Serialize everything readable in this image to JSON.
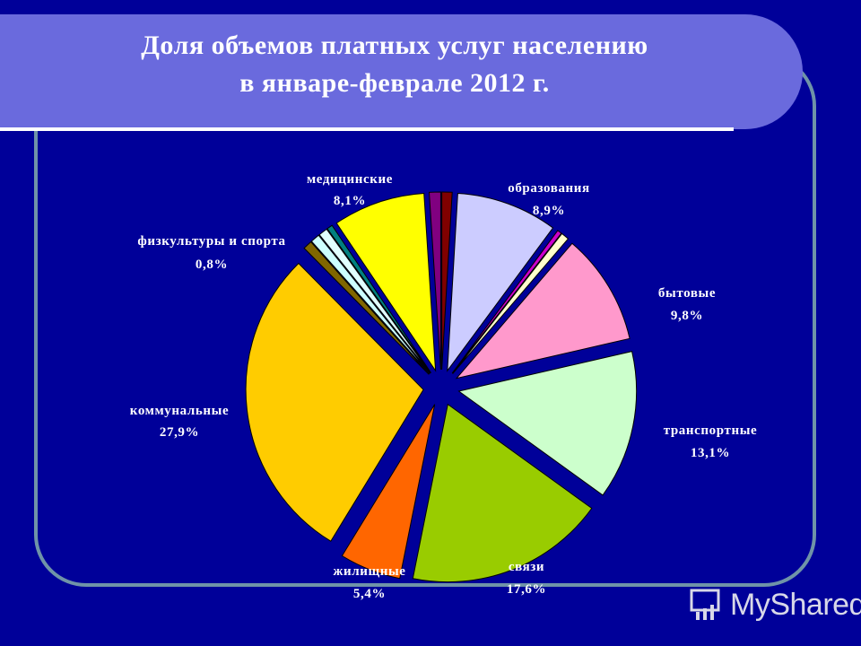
{
  "title": {
    "line1": "Доля объемов платных услуг населению",
    "line2": "в январе-феврале 2012 г."
  },
  "watermark": {
    "text": "MyShared",
    "icon": "presentation-icon"
  },
  "chart_data": {
    "type": "pie",
    "exploded": true,
    "slices": [
      {
        "label": "",
        "value": 0.9,
        "pct": "",
        "color": "#800000"
      },
      {
        "label": "образования",
        "value": 8.9,
        "pct": "8,9%",
        "color": "#ccccff"
      },
      {
        "label": "",
        "value": 0.4,
        "pct": "",
        "color": "#cc00cc"
      },
      {
        "label": "",
        "value": 0.7,
        "pct": "",
        "color": "#ffffcc"
      },
      {
        "label": "бытовые",
        "value": 9.8,
        "pct": "9,8%",
        "color": "#ff99cc"
      },
      {
        "label": "транспортные",
        "value": 13.1,
        "pct": "13,1%",
        "color": "#ccffcc"
      },
      {
        "label": "связи",
        "value": 17.6,
        "pct": "17,6%",
        "color": "#99cc00"
      },
      {
        "label": "жилищные",
        "value": 5.4,
        "pct": "5,4%",
        "color": "#ff6600"
      },
      {
        "label": "коммунальные",
        "value": 27.9,
        "pct": "27,9%",
        "color": "#ffcc00"
      },
      {
        "label": "",
        "value": 0.8,
        "pct": "",
        "color": "#806600"
      },
      {
        "label": "",
        "value": 0.8,
        "pct": "",
        "color": "#ccffff"
      },
      {
        "label": "физкультуры и спорта",
        "value": 0.8,
        "pct": "0,8%",
        "color": "#e0ffff"
      },
      {
        "label": "",
        "value": 0.5,
        "pct": "",
        "color": "#008080"
      },
      {
        "label": "медицинские",
        "value": 8.1,
        "pct": "8,1%",
        "color": "#ffff00"
      },
      {
        "label": "",
        "value": 1.0,
        "pct": "",
        "color": "#800080"
      }
    ]
  }
}
